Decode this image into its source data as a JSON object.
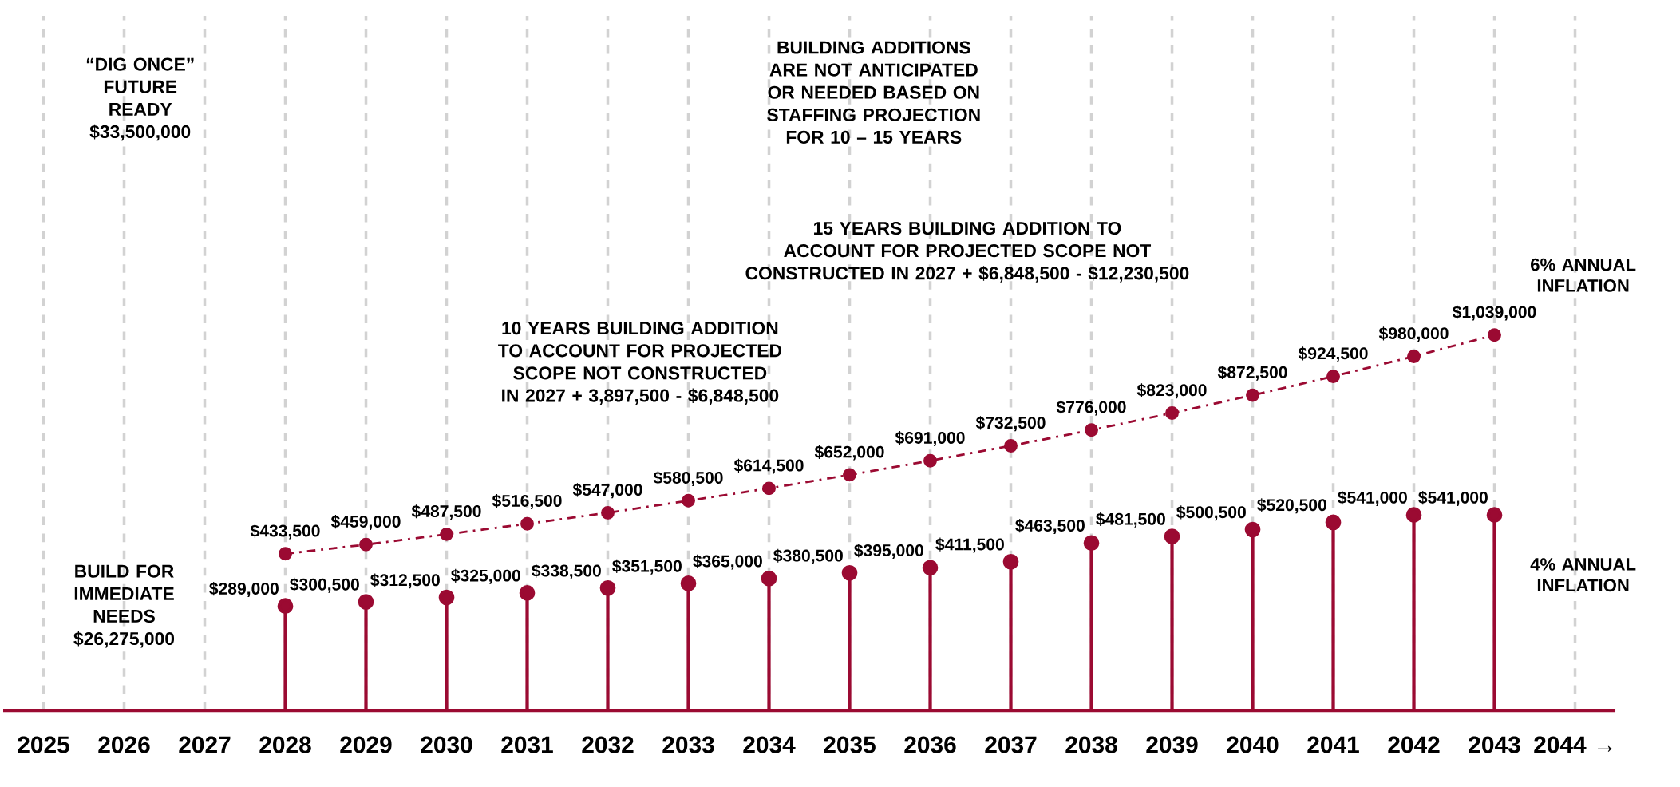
{
  "chart_data": {
    "type": "lollipop",
    "categories": [
      "2025",
      "2026",
      "2027",
      "2028",
      "2029",
      "2030",
      "2031",
      "2032",
      "2033",
      "2034",
      "2035",
      "2036",
      "2037",
      "2038",
      "2039",
      "2040",
      "2041",
      "2042",
      "2043",
      "2044 →"
    ],
    "series": [
      {
        "name": "6% ANNUAL INFLATION",
        "type": "line",
        "color": "#9b0a32",
        "values": [
          null,
          null,
          null,
          433500,
          459000,
          487500,
          516500,
          547000,
          580500,
          614500,
          652000,
          691000,
          732500,
          776000,
          823000,
          872500,
          924500,
          980000,
          1039000,
          null
        ],
        "value_labels": [
          null,
          null,
          null,
          "$433,500",
          "$459,000",
          "$487,500",
          "$516,500",
          "$547,000",
          "$580,500",
          "$614,500",
          "$652,000",
          "$691,000",
          "$732,500",
          "$776,000",
          "$823,000",
          "$872,500",
          "$924,500",
          "$980,000",
          "$1,039,000",
          null
        ]
      },
      {
        "name": "4% ANNUAL INFLATION",
        "color": "#9b0a32",
        "values": [
          null,
          null,
          null,
          289000,
          300500,
          312500,
          325000,
          338500,
          351500,
          365000,
          380500,
          395000,
          411500,
          463500,
          481500,
          500500,
          520500,
          541000,
          541000,
          null
        ],
        "value_labels": [
          null,
          null,
          null,
          "$289,000",
          "$300,500",
          "$312,500",
          "$325,000",
          "$338,500",
          "$351,500",
          "$365,000",
          "$380,500",
          "$395,000",
          "$411,500",
          "$463,500",
          "$481,500",
          "$500,500",
          "$520,500",
          "$541,000",
          "$541,000",
          null
        ]
      }
    ],
    "annotations": [
      "“DIG ONCE” FUTURE READY $33,500,000",
      "BUILD FOR IMMEDIATE NEEDS $26,275,000",
      "BUILDING ADDITIONS ARE NOT ANTICIPATED OR NEEDED BASED ON STAFFING PROJECTION FOR 10 – 15 YEARS",
      "15 YEARS BUILDING ADDITION TO ACCOUNT FOR PROJECTED SCOPE NOT CONSTRUCTED IN 2027 + $6,848,500 - $12,230,500",
      "10 YEARS BUILDING ADDITION TO ACCOUNT FOR PROJECTED SCOPE NOT CONSTRUCTED IN 2027 + 3,897,500 - $6,848,500"
    ],
    "grid": "x",
    "legend": "right",
    "tick_labels": "x",
    "marker": "circle",
    "line_style": "dashed"
  }
}
